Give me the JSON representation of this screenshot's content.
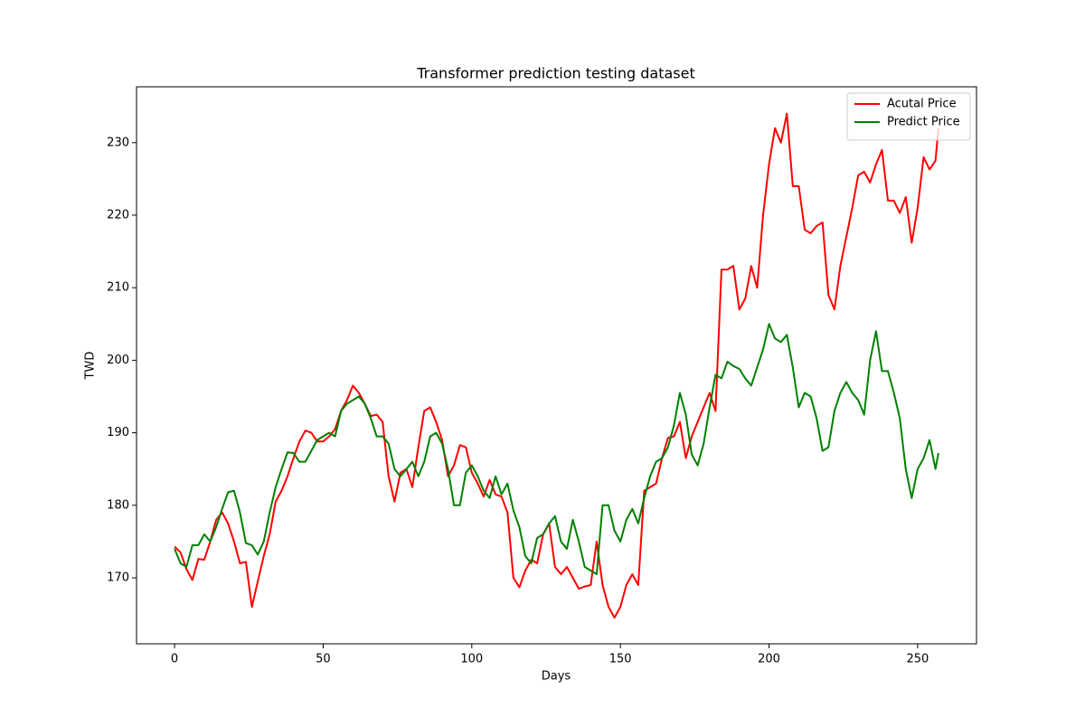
{
  "chart_data": {
    "type": "line",
    "title": "Transformer prediction testing dataset",
    "x_label": "Days",
    "y_label": "TWD",
    "x": [
      0,
      2,
      4,
      6,
      8,
      10,
      12,
      14,
      16,
      18,
      20,
      22,
      24,
      26,
      28,
      30,
      32,
      34,
      36,
      38,
      40,
      42,
      44,
      46,
      48,
      50,
      52,
      54,
      56,
      58,
      60,
      62,
      64,
      66,
      68,
      70,
      72,
      74,
      76,
      78,
      80,
      82,
      84,
      86,
      88,
      90,
      92,
      94,
      96,
      98,
      100,
      102,
      104,
      106,
      108,
      110,
      112,
      114,
      116,
      118,
      120,
      122,
      124,
      126,
      128,
      130,
      132,
      134,
      136,
      138,
      140,
      142,
      144,
      146,
      148,
      150,
      152,
      154,
      156,
      158,
      160,
      162,
      164,
      166,
      168,
      170,
      172,
      174,
      176,
      178,
      180,
      182,
      184,
      186,
      188,
      190,
      192,
      194,
      196,
      198,
      200,
      202,
      204,
      206,
      208,
      210,
      212,
      214,
      216,
      218,
      220,
      222,
      224,
      226,
      228,
      230,
      232,
      234,
      236,
      238,
      240,
      242,
      244,
      246,
      248,
      250,
      252,
      254,
      256,
      257
    ],
    "series": [
      {
        "name": "Acutal Price",
        "color": "#ff0000",
        "values": [
          174.3,
          173.5,
          171.2,
          169.7,
          172.6,
          172.5,
          175,
          178,
          179,
          177.5,
          175,
          172,
          172.2,
          166,
          169.5,
          173,
          176,
          180.5,
          182,
          184,
          186.5,
          188.8,
          190.3,
          190,
          188.8,
          188.8,
          189.5,
          190.5,
          193,
          194.5,
          196.5,
          195.5,
          194,
          192.3,
          192.5,
          191.5,
          184,
          180.5,
          184.5,
          185,
          182.5,
          188,
          193,
          193.5,
          191.5,
          189,
          184,
          185.5,
          188.3,
          188,
          184.5,
          183,
          181.2,
          183.5,
          181.5,
          181.2,
          179,
          170,
          168.7,
          171,
          172.5,
          172,
          176,
          177.5,
          171.5,
          170.5,
          171.5,
          170,
          168.5,
          168.8,
          169,
          175,
          169,
          166,
          164.5,
          166,
          169,
          170.5,
          169,
          182,
          182.5,
          183,
          186.5,
          189.3,
          189.5,
          191.5,
          186.5,
          189.5,
          191.5,
          193.5,
          195.5,
          193,
          212.5,
          212.5,
          213,
          207,
          208.5,
          213,
          210,
          220,
          227,
          232,
          230,
          234,
          224,
          224,
          218,
          217.5,
          218.5,
          219,
          209,
          207,
          213,
          217,
          221,
          225.5,
          226,
          224.5,
          227,
          229,
          222,
          222,
          220.3,
          222.5,
          216.2,
          221,
          228,
          226.3,
          227.5,
          232
        ]
      },
      {
        "name": "Predict Price",
        "color": "#008000",
        "values": [
          174,
          172,
          171.5,
          174.5,
          174.5,
          176,
          175,
          177,
          179.5,
          181.8,
          182,
          179,
          174.8,
          174.5,
          173.2,
          175,
          179,
          182.5,
          185,
          187.3,
          187.2,
          186,
          186,
          187.5,
          189,
          189.5,
          190,
          189.5,
          193,
          194,
          194.5,
          195,
          194,
          192,
          189.5,
          189.5,
          188.5,
          185,
          184,
          185,
          186,
          184,
          186,
          189.5,
          190,
          188.5,
          185,
          180,
          180,
          184.5,
          185.5,
          184,
          182,
          181,
          184,
          181.5,
          183,
          179.3,
          177,
          173,
          172,
          175.5,
          176,
          177.5,
          178.5,
          175,
          174,
          178,
          175,
          171.5,
          171,
          170.5,
          180,
          180,
          176.5,
          175,
          178,
          179.5,
          177.5,
          181,
          184,
          186,
          186.5,
          188,
          191,
          195.5,
          192.5,
          187,
          185.5,
          188.5,
          193.5,
          198,
          197.5,
          199.8,
          199.2,
          198.8,
          197.5,
          196.5,
          199,
          201.5,
          205,
          203,
          202.5,
          203.5,
          199,
          193.5,
          195.5,
          195,
          192,
          187.5,
          188,
          193,
          195.5,
          197,
          195.5,
          194.5,
          192.5,
          200,
          204,
          198.5,
          198.5,
          195.5,
          192,
          185,
          181,
          185,
          186.5,
          189,
          185,
          187.2
        ]
      }
    ],
    "xlim": [
      -12.8,
      269.8
    ],
    "ylim": [
      160.9,
      237.7
    ],
    "xticks": [
      0,
      50,
      100,
      150,
      200,
      250
    ],
    "yticks": [
      170,
      180,
      190,
      200,
      210,
      220,
      230
    ],
    "grid": false,
    "legend": "upper right"
  }
}
